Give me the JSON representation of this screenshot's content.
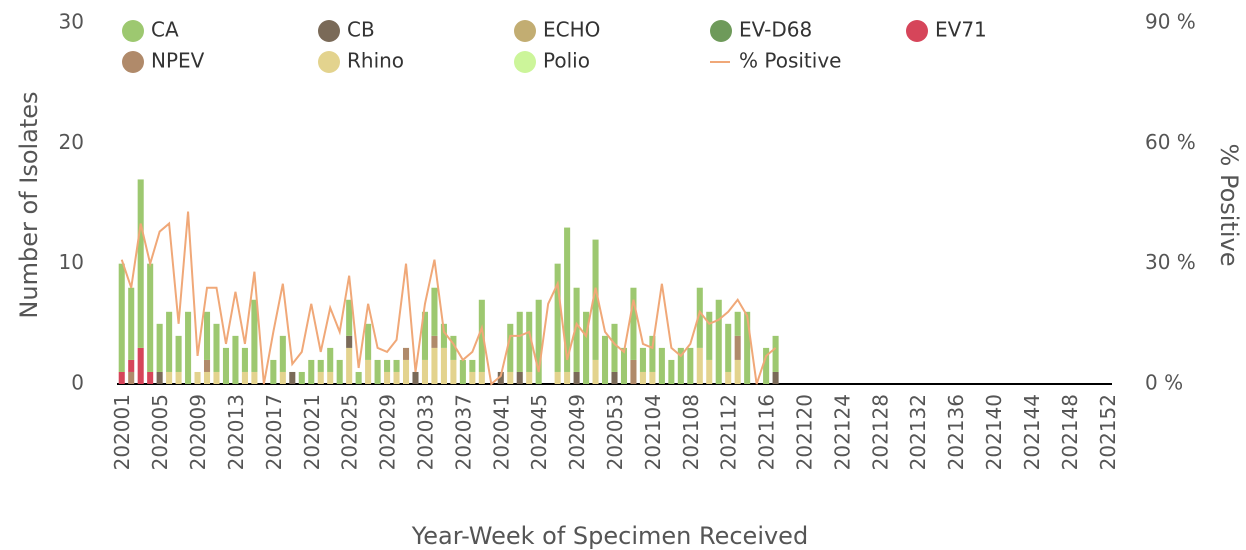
{
  "chart_data": {
    "type": "stacked-bar-line",
    "y_label": "Number of Isolates",
    "y2_label": "% Positive",
    "x_label": "Year-Week of Specimen Received",
    "categories": [
      "202001",
      null,
      null,
      null,
      "202005",
      null,
      null,
      null,
      "202009",
      null,
      null,
      null,
      "202013",
      null,
      null,
      null,
      "202017",
      null,
      null,
      null,
      "202021",
      null,
      null,
      null,
      "202025",
      null,
      null,
      null,
      "202029",
      null,
      null,
      null,
      "202033",
      null,
      null,
      null,
      "202037",
      null,
      null,
      null,
      "202041",
      null,
      null,
      null,
      "202045",
      null,
      null,
      null,
      "202049",
      null,
      null,
      null,
      "202053",
      null,
      null,
      null,
      "202104",
      null,
      null,
      null,
      "202108",
      null,
      null,
      null,
      "202112",
      null,
      null,
      null,
      "202116",
      null,
      null,
      null,
      "202120",
      null,
      null,
      null,
      "202124",
      null,
      null,
      null,
      "202128",
      null,
      null,
      null,
      "202132",
      null,
      null,
      null,
      "202136",
      null,
      null,
      null,
      "202140",
      null,
      null,
      null,
      "202144",
      null,
      null,
      null,
      "202148",
      null,
      null,
      null,
      "202152"
    ],
    "ylim": [
      0,
      30
    ],
    "yticks": [
      0,
      10,
      20,
      30
    ],
    "y2lim": [
      0,
      90
    ],
    "y2ticks": [
      {
        "value": 0,
        "label": "0 %"
      },
      {
        "value": 30,
        "label": "30 %"
      },
      {
        "value": 60,
        "label": "60 %"
      },
      {
        "value": 90,
        "label": "90 %"
      }
    ],
    "series": [
      {
        "name": "CA",
        "color": "#9dc870",
        "values": [
          9,
          6,
          14,
          9,
          4,
          5,
          3,
          6,
          0,
          4,
          4,
          3,
          4,
          2,
          6,
          0,
          2,
          3,
          0,
          1,
          2,
          1,
          2,
          2,
          3,
          1,
          3,
          2,
          1,
          1,
          0,
          0,
          4,
          4,
          2,
          2,
          2,
          1,
          6,
          0,
          0,
          4,
          5,
          5,
          7,
          0,
          9,
          12,
          7,
          6,
          10,
          4,
          4,
          3,
          6,
          2,
          3,
          3,
          2,
          3,
          3,
          5,
          4,
          7,
          4,
          2,
          6,
          0,
          3,
          3,
          null,
          null,
          null,
          null,
          null,
          null,
          null,
          null,
          null,
          null,
          null,
          null,
          null,
          null,
          null,
          null,
          null,
          null,
          null,
          null,
          null,
          null,
          null,
          null,
          null,
          null,
          null,
          null,
          null,
          null,
          null,
          null,
          null,
          null,
          null
        ]
      },
      {
        "name": "CB",
        "color": "#7a6a58",
        "values": [
          0,
          0,
          0,
          0,
          1,
          0,
          0,
          0,
          0,
          0,
          0,
          0,
          0,
          0,
          0,
          0,
          0,
          0,
          1,
          0,
          0,
          0,
          0,
          0,
          1,
          0,
          0,
          0,
          0,
          0,
          0,
          1,
          0,
          0,
          0,
          0,
          0,
          0,
          0,
          0,
          1,
          0,
          1,
          0,
          0,
          0,
          0,
          0,
          1,
          0,
          0,
          0,
          1,
          0,
          0,
          0,
          0,
          0,
          0,
          0,
          0,
          0,
          0,
          0,
          0,
          0,
          0,
          0,
          0,
          1,
          null,
          null,
          null,
          null,
          null,
          null,
          null,
          null,
          null,
          null,
          null,
          null,
          null,
          null,
          null,
          null,
          null,
          null,
          null,
          null,
          null,
          null,
          null,
          null,
          null,
          null,
          null,
          null,
          null,
          null,
          null,
          null,
          null,
          null,
          null
        ]
      },
      {
        "name": "ECHO",
        "color": "#c2ad72",
        "values": [
          0,
          0,
          0,
          0,
          0,
          0,
          0,
          0,
          0,
          0,
          0,
          0,
          0,
          0,
          0,
          0,
          0,
          0,
          0,
          0,
          0,
          0,
          0,
          0,
          0,
          0,
          0,
          0,
          0,
          0,
          0,
          0,
          0,
          0,
          0,
          0,
          0,
          0,
          0,
          0,
          0,
          0,
          0,
          0,
          0,
          0,
          0,
          0,
          0,
          0,
          0,
          0,
          0,
          0,
          0,
          0,
          0,
          0,
          0,
          0,
          0,
          0,
          0,
          0,
          0,
          0,
          0,
          0,
          0,
          0,
          null,
          null,
          null,
          null,
          null,
          null,
          null,
          null,
          null,
          null,
          null,
          null,
          null,
          null,
          null,
          null,
          null,
          null,
          null,
          null,
          null,
          null,
          null,
          null,
          null,
          null,
          null,
          null,
          null,
          null,
          null,
          null,
          null,
          null,
          null
        ]
      },
      {
        "name": "EV-D68",
        "color": "#6e9a5a",
        "values": [
          0,
          0,
          0,
          0,
          0,
          0,
          0,
          0,
          0,
          0,
          0,
          0,
          0,
          0,
          0,
          0,
          0,
          0,
          0,
          0,
          0,
          0,
          0,
          0,
          0,
          0,
          0,
          0,
          0,
          0,
          0,
          0,
          0,
          0,
          0,
          0,
          0,
          0,
          0,
          0,
          0,
          0,
          0,
          0,
          0,
          0,
          0,
          0,
          0,
          0,
          0,
          0,
          0,
          0,
          0,
          0,
          0,
          0,
          0,
          0,
          0,
          0,
          0,
          0,
          0,
          0,
          0,
          0,
          0,
          0,
          null,
          null,
          null,
          null,
          null,
          null,
          null,
          null,
          null,
          null,
          null,
          null,
          null,
          null,
          null,
          null,
          null,
          null,
          null,
          null,
          null,
          null,
          null,
          null,
          null,
          null,
          null,
          null,
          null,
          null,
          null,
          null,
          null,
          null,
          null
        ]
      },
      {
        "name": "EV71",
        "color": "#d6455a",
        "values": [
          1,
          1,
          3,
          1,
          0,
          0,
          0,
          0,
          0,
          0,
          0,
          0,
          0,
          0,
          0,
          0,
          0,
          0,
          0,
          0,
          0,
          0,
          0,
          0,
          0,
          0,
          0,
          0,
          0,
          0,
          0,
          0,
          0,
          0,
          0,
          0,
          0,
          0,
          0,
          0,
          0,
          0,
          0,
          0,
          0,
          0,
          0,
          0,
          0,
          0,
          0,
          0,
          0,
          0,
          0,
          0,
          0,
          0,
          0,
          0,
          0,
          0,
          0,
          0,
          0,
          0,
          0,
          0,
          0,
          0,
          null,
          null,
          null,
          null,
          null,
          null,
          null,
          null,
          null,
          null,
          null,
          null,
          null,
          null,
          null,
          null,
          null,
          null,
          null,
          null,
          null,
          null,
          null,
          null,
          null,
          null,
          null,
          null,
          null,
          null,
          null,
          null,
          null,
          null,
          null
        ]
      },
      {
        "name": "NPEV",
        "color": "#b08a6a",
        "values": [
          0,
          1,
          0,
          0,
          0,
          0,
          0,
          0,
          0,
          1,
          0,
          0,
          0,
          0,
          0,
          0,
          0,
          0,
          0,
          0,
          0,
          0,
          0,
          0,
          0,
          0,
          0,
          0,
          0,
          0,
          1,
          0,
          0,
          1,
          0,
          0,
          0,
          0,
          0,
          0,
          0,
          0,
          0,
          0,
          0,
          0,
          0,
          0,
          0,
          0,
          0,
          0,
          0,
          0,
          2,
          0,
          0,
          0,
          0,
          0,
          0,
          0,
          0,
          0,
          0,
          2,
          0,
          0,
          0,
          0,
          null,
          null,
          null,
          null,
          null,
          null,
          null,
          null,
          null,
          null,
          null,
          null,
          null,
          null,
          null,
          null,
          null,
          null,
          null,
          null,
          null,
          null,
          null,
          null,
          null,
          null,
          null,
          null,
          null,
          null,
          null,
          null,
          null,
          null,
          null
        ]
      },
      {
        "name": "Rhino",
        "color": "#e3d38e",
        "values": [
          0,
          0,
          0,
          0,
          0,
          1,
          1,
          0,
          1,
          1,
          1,
          0,
          0,
          1,
          1,
          0,
          0,
          1,
          0,
          0,
          0,
          1,
          1,
          0,
          3,
          0,
          2,
          0,
          1,
          1,
          2,
          0,
          2,
          3,
          3,
          2,
          0,
          1,
          1,
          0,
          0,
          1,
          0,
          1,
          0,
          0,
          1,
          1,
          0,
          0,
          2,
          0,
          0,
          0,
          0,
          1,
          1,
          0,
          0,
          0,
          0,
          3,
          2,
          0,
          1,
          2,
          0,
          0,
          0,
          0,
          null,
          null,
          null,
          null,
          null,
          null,
          null,
          null,
          null,
          null,
          null,
          null,
          null,
          null,
          null,
          null,
          null,
          null,
          null,
          null,
          null,
          null,
          null,
          null,
          null,
          null,
          null,
          null,
          null,
          null,
          null,
          null,
          null,
          null,
          null
        ]
      },
      {
        "name": "Polio",
        "color": "#ccf59a",
        "values": [
          0,
          0,
          0,
          0,
          0,
          0,
          0,
          0,
          0,
          0,
          0,
          0,
          0,
          0,
          0,
          0,
          0,
          0,
          0,
          0,
          0,
          0,
          0,
          0,
          0,
          0,
          0,
          0,
          0,
          0,
          0,
          0,
          0,
          0,
          0,
          0,
          0,
          0,
          0,
          0,
          0,
          0,
          0,
          0,
          0,
          0,
          0,
          0,
          0,
          0,
          0,
          0,
          0,
          0,
          0,
          0,
          0,
          0,
          0,
          0,
          0,
          0,
          0,
          0,
          0,
          0,
          0,
          0,
          0,
          0,
          null,
          null,
          null,
          null,
          null,
          null,
          null,
          null,
          null,
          null,
          null,
          null,
          null,
          null,
          null,
          null,
          null,
          null,
          null,
          null,
          null,
          null,
          null,
          null,
          null,
          null,
          null,
          null,
          null,
          null,
          null,
          null,
          null,
          null,
          null
        ]
      },
      {
        "name": "% Positive",
        "color": "#f0a878",
        "type": "line",
        "axis": "y2",
        "values": [
          31,
          24,
          40,
          30,
          38,
          40,
          15,
          43,
          7,
          24,
          24,
          10,
          23,
          10,
          28,
          0,
          13,
          25,
          5,
          8,
          20,
          8,
          19,
          13,
          27,
          4,
          20,
          9,
          8,
          11,
          30,
          3,
          20,
          31,
          13,
          10,
          6,
          8,
          14,
          0,
          2,
          12,
          12,
          13,
          3,
          20,
          25,
          6,
          15,
          12,
          24,
          13,
          10,
          8,
          21,
          10,
          9,
          25,
          9,
          7,
          10,
          18,
          15,
          16,
          18,
          21,
          17,
          0,
          7,
          9,
          null,
          null,
          null,
          null,
          null,
          null,
          null,
          null,
          null,
          null,
          null,
          null,
          null,
          null,
          null,
          null,
          null,
          null,
          null,
          null,
          null,
          null,
          null,
          null,
          null,
          null,
          null,
          null,
          null,
          null,
          null,
          null,
          null,
          null,
          null
        ]
      }
    ]
  }
}
